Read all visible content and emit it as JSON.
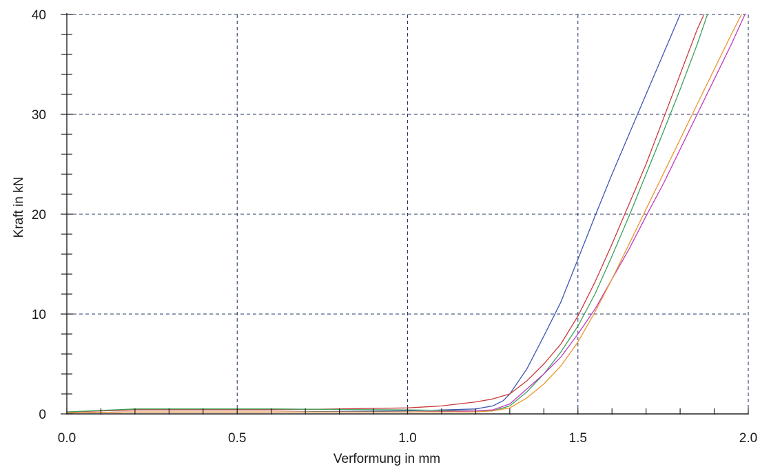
{
  "chart_data": {
    "type": "line",
    "title": "",
    "xlabel": "Verformung in mm",
    "ylabel": "Kraft in kN",
    "xlim": [
      0,
      2.0
    ],
    "ylim": [
      0,
      40
    ],
    "x_ticks": [
      "0.0",
      "0.5",
      "1.0",
      "1.5",
      "2.0"
    ],
    "y_ticks": [
      "0",
      "10",
      "20",
      "30",
      "40"
    ],
    "x_minor_step": 0.1,
    "y_minor_step": 2,
    "grid": "dashed",
    "legend": "none",
    "series": [
      {
        "color": "#3a56b0",
        "x": [
          0,
          0.2,
          0.6,
          1.0,
          1.2,
          1.25,
          1.28,
          1.3,
          1.35,
          1.4,
          1.45,
          1.5,
          1.55,
          1.6,
          1.65,
          1.7,
          1.75,
          1.8
        ],
        "y": [
          0.1,
          0.2,
          0.2,
          0.3,
          0.5,
          0.8,
          1.3,
          2.0,
          4.5,
          7.8,
          11.2,
          15.5,
          19.8,
          24.0,
          28.0,
          32.0,
          36.0,
          40.0
        ]
      },
      {
        "color": "#c83a3a",
        "x": [
          0,
          0.2,
          0.6,
          1.0,
          1.1,
          1.2,
          1.25,
          1.3,
          1.35,
          1.4,
          1.45,
          1.5,
          1.55,
          1.6,
          1.65,
          1.7,
          1.75,
          1.8,
          1.85,
          1.87
        ],
        "y": [
          0.2,
          0.4,
          0.4,
          0.6,
          0.8,
          1.2,
          1.5,
          2.0,
          3.3,
          5.0,
          7.0,
          9.8,
          13.2,
          17.0,
          21.0,
          25.0,
          29.5,
          34.0,
          38.5,
          40.0
        ]
      },
      {
        "color": "#3aa05a",
        "x": [
          0,
          0.2,
          0.6,
          1.0,
          1.2,
          1.25,
          1.3,
          1.35,
          1.4,
          1.45,
          1.5,
          1.55,
          1.6,
          1.65,
          1.7,
          1.75,
          1.8,
          1.85,
          1.88
        ],
        "y": [
          0.2,
          0.5,
          0.5,
          0.4,
          0.3,
          0.3,
          0.8,
          2.2,
          4.0,
          6.2,
          8.8,
          12.0,
          15.8,
          19.8,
          24.0,
          28.2,
          32.5,
          37.0,
          40.0
        ]
      },
      {
        "color": "#c03ac0",
        "x": [
          0,
          0.2,
          0.6,
          1.0,
          1.2,
          1.25,
          1.3,
          1.35,
          1.4,
          1.45,
          1.5,
          1.55,
          1.6,
          1.65,
          1.7,
          1.75,
          1.8,
          1.85,
          1.9,
          1.95,
          1.99
        ],
        "y": [
          0.1,
          0.2,
          0.2,
          0.2,
          0.3,
          0.4,
          1.0,
          2.5,
          4.0,
          5.7,
          8.0,
          10.5,
          13.5,
          16.5,
          19.8,
          23.0,
          26.5,
          30.0,
          33.5,
          37.0,
          40.0
        ]
      },
      {
        "color": "#e8962a",
        "x": [
          0,
          0.2,
          0.6,
          1.0,
          1.2,
          1.25,
          1.3,
          1.35,
          1.4,
          1.45,
          1.5,
          1.55,
          1.6,
          1.65,
          1.7,
          1.75,
          1.8,
          1.85,
          1.9,
          1.95,
          1.98
        ],
        "y": [
          0.1,
          0.2,
          0.2,
          0.2,
          0.2,
          0.3,
          0.6,
          1.6,
          3.0,
          4.8,
          7.2,
          10.2,
          13.5,
          17.0,
          20.5,
          24.0,
          27.5,
          31.0,
          34.5,
          38.0,
          40.0
        ]
      }
    ]
  }
}
